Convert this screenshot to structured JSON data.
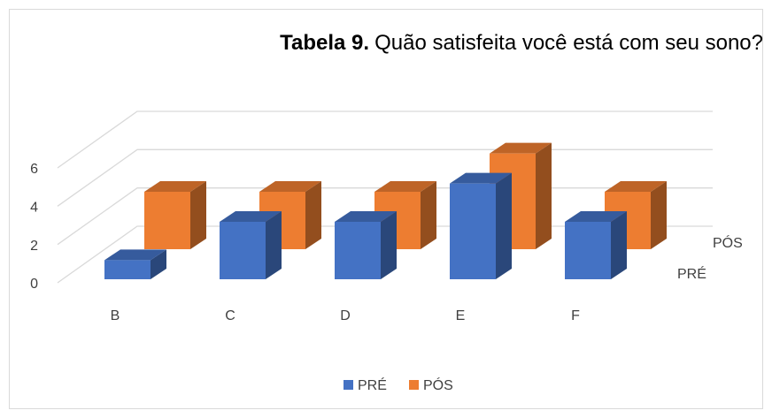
{
  "chart_data": {
    "type": "bar3d",
    "title_label": "Tabela 9.",
    "title": "Quão satisfeita você está com seu sono?",
    "categories": [
      "B",
      "C",
      "D",
      "E",
      "F"
    ],
    "series": [
      {
        "name": "PRÉ",
        "color": "#4472c4",
        "values": [
          1,
          3,
          3,
          5,
          3
        ]
      },
      {
        "name": "PÓS",
        "color": "#ed7d31",
        "values": [
          3,
          3,
          3,
          5,
          3
        ]
      }
    ],
    "ylim": [
      0,
      6
    ],
    "yticks": [
      0,
      2,
      4,
      6
    ],
    "grid": true,
    "legend": "bottom"
  }
}
